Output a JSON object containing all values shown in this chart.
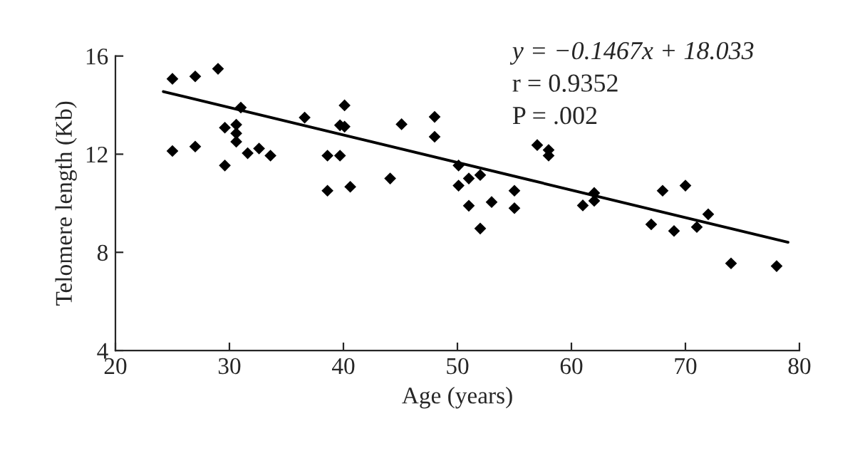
{
  "chart_data": {
    "type": "scatter",
    "xlabel": "Age (years)",
    "ylabel": "Telomere length (Kb)",
    "annotations": [
      "y = −0.1467x + 18.033",
      "r = 0.9352",
      "P = .002"
    ],
    "xlim": [
      20,
      80
    ],
    "xticks": [
      20,
      30,
      40,
      50,
      60,
      70,
      80
    ],
    "ylim": [
      4,
      16
    ],
    "yticks": [
      4,
      8,
      12,
      16
    ],
    "grid": false,
    "legend": false,
    "series": [
      {
        "marker": "diamond",
        "color": "#000000",
        "x": [
          25.0,
          27.0,
          29.0,
          31.0,
          29.6,
          30.6,
          30.6,
          30.6,
          25.0,
          27.0,
          29.6,
          31.6,
          32.6,
          33.6,
          36.6,
          38.6,
          39.7,
          40.1,
          39.7,
          40.1,
          38.6,
          40.6,
          44.1,
          45.1,
          48.0,
          48.0,
          50.1,
          51.0,
          52.0,
          50.1,
          51.0,
          52.0,
          53.0,
          55.0,
          55.0,
          57.0,
          58.0,
          58.0,
          61.0,
          62.0,
          62.0,
          67.0,
          68.0,
          69.0,
          70.0,
          71.0,
          72.0,
          74.0,
          78.0
        ],
        "values": [
          15.07,
          15.17,
          15.48,
          13.9,
          13.08,
          13.2,
          12.85,
          12.51,
          12.13,
          12.31,
          11.54,
          12.04,
          12.23,
          11.94,
          13.49,
          11.94,
          11.94,
          13.99,
          13.18,
          13.12,
          10.51,
          10.67,
          11.01,
          13.22,
          13.52,
          12.71,
          11.54,
          11.01,
          11.15,
          10.72,
          9.9,
          8.97,
          10.05,
          10.51,
          9.8,
          12.37,
          12.17,
          11.94,
          9.91,
          10.42,
          10.1,
          9.14,
          10.51,
          8.87,
          10.72,
          9.03,
          9.55,
          7.55,
          7.44
        ]
      },
      {
        "type": "line",
        "marker": "none",
        "line_style": "solid",
        "color": "#000000",
        "x": [
          24.2,
          79.0
        ],
        "values": [
          14.55,
          8.41
        ]
      }
    ]
  }
}
